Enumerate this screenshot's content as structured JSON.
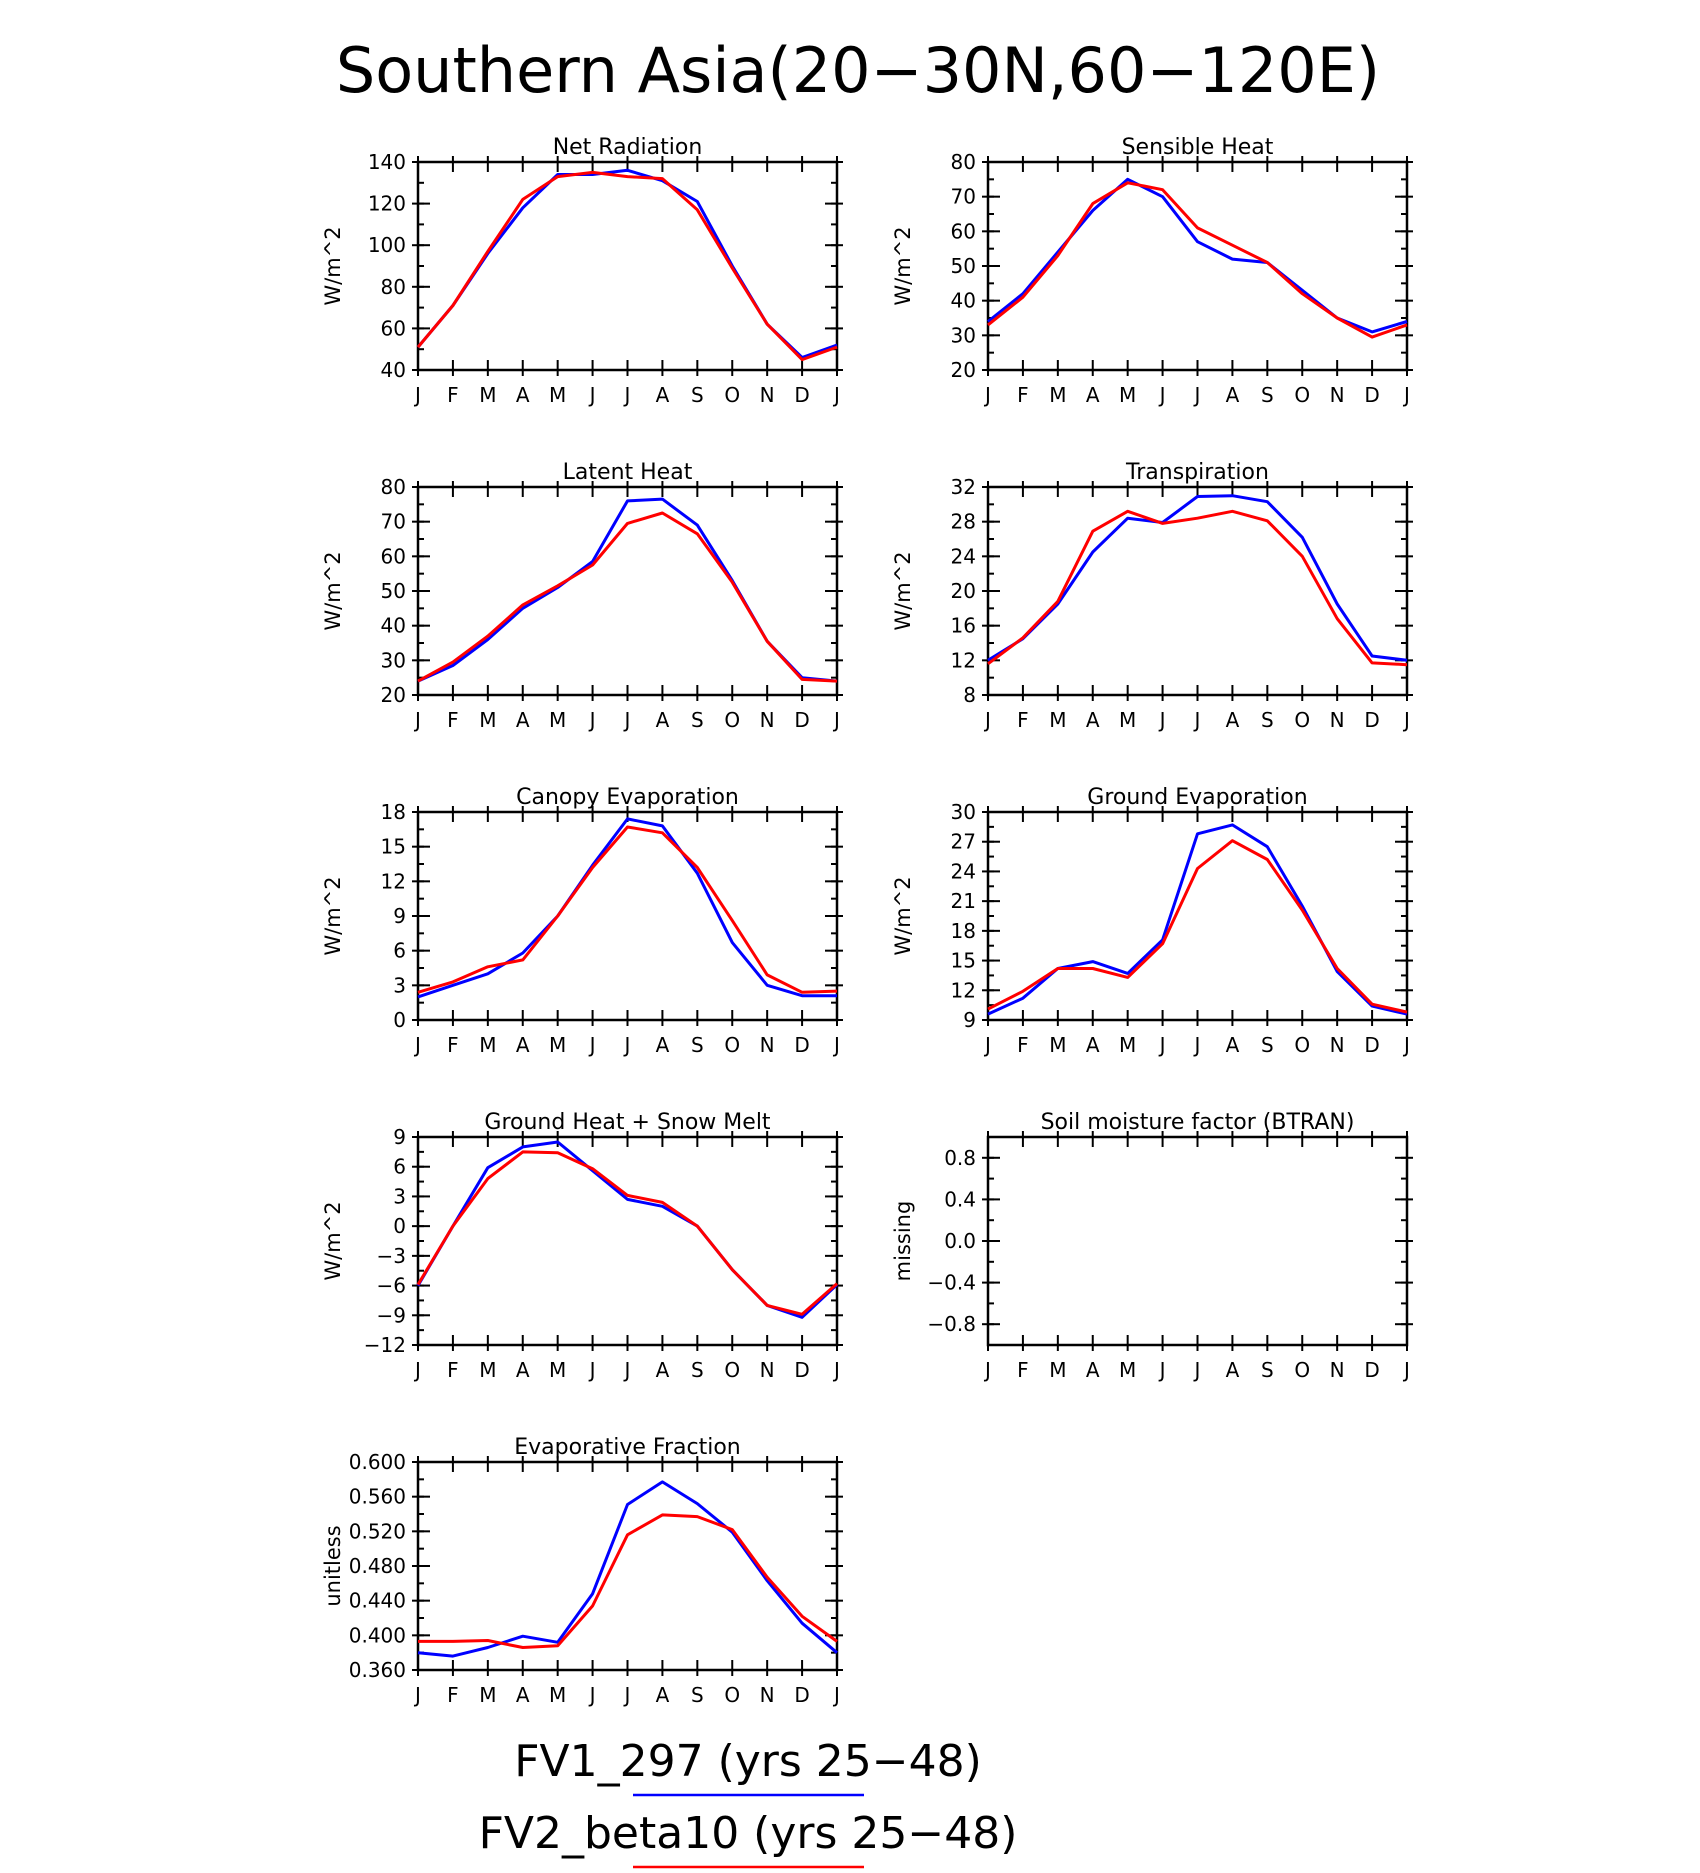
{
  "chart_data": {
    "title": "Southern Asia(20−30N,60−120E)",
    "months": [
      "J",
      "F",
      "M",
      "A",
      "M",
      "J",
      "J",
      "A",
      "S",
      "O",
      "N",
      "D",
      "J"
    ],
    "legend": [
      {
        "name": "FV1_297 (yrs 25−48)",
        "color": "#0000ff"
      },
      {
        "name": "FV2_beta10 (yrs 25−48)",
        "color": "#ff0000"
      }
    ],
    "panels": [
      {
        "type": "line",
        "title": "Net Radiation",
        "ylabel": "W/m^2",
        "ylim": [
          40,
          140
        ],
        "yticks": [
          "40",
          "60",
          "80",
          "100",
          "120",
          "140"
        ],
        "ytick_values": [
          40,
          60,
          80,
          100,
          120,
          140
        ],
        "series": [
          {
            "name": "FV1_297 (yrs 25−48)",
            "color": "#0000ff",
            "values": [
              51,
              71,
              96,
              118,
              134,
              134,
              136,
              131,
              121,
              90,
              62,
              46,
              52
            ]
          },
          {
            "name": "FV2_beta10 (yrs 25−48)",
            "color": "#ff0000",
            "values": [
              51,
              71,
              97,
              122,
              133,
              135,
              133,
              132,
              117,
              89,
              62,
              45,
              51
            ]
          }
        ]
      },
      {
        "type": "line",
        "title": "Sensible Heat",
        "ylabel": "W/m^2",
        "ylim": [
          20,
          80
        ],
        "yticks": [
          "20",
          "30",
          "40",
          "50",
          "60",
          "70",
          "80"
        ],
        "ytick_values": [
          20,
          30,
          40,
          50,
          60,
          70,
          80
        ],
        "series": [
          {
            "name": "FV1_297 (yrs 25−48)",
            "color": "#0000ff",
            "values": [
              34,
              42,
              54,
              66,
              75,
              70,
              57,
              52,
              51,
              43,
              35,
              31,
              34
            ]
          },
          {
            "name": "FV2_beta10 (yrs 25−48)",
            "color": "#ff0000",
            "values": [
              33,
              41,
              53,
              68,
              74,
              72,
              61,
              56,
              51,
              42,
              35,
              29.5,
              33
            ]
          }
        ]
      },
      {
        "type": "line",
        "title": "Latent Heat",
        "ylabel": "W/m^2",
        "ylim": [
          20,
          80
        ],
        "yticks": [
          "20",
          "30",
          "40",
          "50",
          "60",
          "70",
          "80"
        ],
        "ytick_values": [
          20,
          30,
          40,
          50,
          60,
          70,
          80
        ],
        "series": [
          {
            "name": "FV1_297 (yrs 25−48)",
            "color": "#0000ff",
            "values": [
              24,
              28.5,
              36,
              45,
              51,
              58.5,
              76,
              76.5,
              69,
              53,
              35.5,
              25,
              24
            ]
          },
          {
            "name": "FV2_beta10 (yrs 25−48)",
            "color": "#ff0000",
            "values": [
              24,
              29.5,
              37,
              46,
              51.5,
              57.5,
              69.5,
              72.5,
              66.5,
              52.5,
              35.5,
              24.5,
              24
            ]
          }
        ]
      },
      {
        "type": "line",
        "title": "Transpiration",
        "ylabel": "W/m^2",
        "ylim": [
          8,
          32
        ],
        "yticks": [
          "8",
          "12",
          "16",
          "20",
          "24",
          "28",
          "32"
        ],
        "ytick_values": [
          8,
          12,
          16,
          20,
          24,
          28,
          32
        ],
        "series": [
          {
            "name": "FV1_297 (yrs 25−48)",
            "color": "#0000ff",
            "values": [
              12,
              14.5,
              18.5,
              24.5,
              28.4,
              27.9,
              30.9,
              31.0,
              30.3,
              26.2,
              18.5,
              12.5,
              12
            ]
          },
          {
            "name": "FV2_beta10 (yrs 25−48)",
            "color": "#ff0000",
            "values": [
              11.6,
              14.6,
              18.8,
              26.9,
              29.2,
              27.8,
              28.4,
              29.2,
              28.1,
              24.0,
              16.8,
              11.7,
              11.5
            ]
          }
        ]
      },
      {
        "type": "line",
        "title": "Canopy Evaporation",
        "ylabel": "W/m^2",
        "ylim": [
          0,
          18
        ],
        "yticks": [
          "0",
          "3",
          "6",
          "9",
          "12",
          "15",
          "18"
        ],
        "ytick_values": [
          0,
          3,
          6,
          9,
          12,
          15,
          18
        ],
        "series": [
          {
            "name": "FV1_297 (yrs 25−48)",
            "color": "#0000ff",
            "values": [
              2.0,
              3.0,
              4.0,
              5.8,
              9.0,
              13.4,
              17.4,
              16.8,
              12.7,
              6.7,
              3.0,
              2.1,
              2.1
            ]
          },
          {
            "name": "FV2_beta10 (yrs 25−48)",
            "color": "#ff0000",
            "values": [
              2.4,
              3.3,
              4.6,
              5.2,
              9.0,
              13.2,
              16.7,
              16.2,
              13.2,
              8.6,
              3.9,
              2.4,
              2.5
            ]
          }
        ]
      },
      {
        "type": "line",
        "title": "Ground Evaporation",
        "ylabel": "W/m^2",
        "ylim": [
          9,
          30
        ],
        "yticks": [
          "9",
          "12",
          "15",
          "18",
          "21",
          "24",
          "27",
          "30"
        ],
        "ytick_values": [
          9,
          12,
          15,
          18,
          21,
          24,
          27,
          30
        ],
        "series": [
          {
            "name": "FV1_297 (yrs 25−48)",
            "color": "#0000ff",
            "values": [
              9.6,
              11.2,
              14.2,
              14.9,
              13.7,
              17.1,
              27.8,
              28.7,
              26.5,
              20.5,
              13.9,
              10.4,
              9.6
            ]
          },
          {
            "name": "FV2_beta10 (yrs 25−48)",
            "color": "#ff0000",
            "values": [
              10.1,
              11.9,
              14.2,
              14.2,
              13.3,
              16.7,
              24.3,
              27.1,
              25.2,
              20.1,
              14.2,
              10.6,
              9.8
            ]
          }
        ]
      },
      {
        "type": "line",
        "title": "Ground Heat + Snow Melt",
        "ylabel": "W/m^2",
        "ylim": [
          -12,
          9
        ],
        "yticks": [
          "−12",
          "−9",
          "−6",
          "−3",
          "0",
          "3",
          "6",
          "9"
        ],
        "ytick_values": [
          -12,
          -9,
          -6,
          -3,
          0,
          3,
          6,
          9
        ],
        "series": [
          {
            "name": "FV1_297 (yrs 25−48)",
            "color": "#0000ff",
            "values": [
              -6,
              0,
              5.9,
              8.0,
              8.5,
              5.6,
              2.7,
              2.0,
              0,
              -4.4,
              -8.0,
              -9.2,
              -5.9
            ]
          },
          {
            "name": "FV2_beta10 (yrs 25−48)",
            "color": "#ff0000",
            "values": [
              -5.9,
              0,
              4.8,
              7.5,
              7.4,
              5.8,
              3.1,
              2.4,
              0,
              -4.4,
              -8.0,
              -8.9,
              -5.8
            ]
          }
        ]
      },
      {
        "type": "line",
        "title": "Soil moisture factor (BTRAN)",
        "ylabel": "missing",
        "ylim": [
          -1.0,
          1.0
        ],
        "yticks": [
          "−0.8",
          "−0.4",
          "0.0",
          "0.4",
          "0.8"
        ],
        "ytick_values": [
          -0.8,
          -0.4,
          0.0,
          0.4,
          0.8
        ],
        "series": []
      },
      {
        "type": "line",
        "title": "Evaporative Fraction",
        "ylabel": "unitless",
        "ylim": [
          0.36,
          0.6
        ],
        "yticks": [
          "0.360",
          "0.400",
          "0.440",
          "0.480",
          "0.520",
          "0.560",
          "0.600"
        ],
        "ytick_values": [
          0.36,
          0.4,
          0.44,
          0.48,
          0.52,
          0.56,
          0.6
        ],
        "series": [
          {
            "name": "FV1_297 (yrs 25−48)",
            "color": "#0000ff",
            "values": [
              0.38,
              0.376,
              0.386,
              0.399,
              0.392,
              0.448,
              0.551,
              0.577,
              0.552,
              0.519,
              0.463,
              0.414,
              0.38
            ]
          },
          {
            "name": "FV2_beta10 (yrs 25−48)",
            "color": "#ff0000",
            "values": [
              0.393,
              0.393,
              0.394,
              0.386,
              0.388,
              0.434,
              0.516,
              0.539,
              0.537,
              0.522,
              0.467,
              0.422,
              0.393
            ]
          }
        ]
      }
    ]
  }
}
